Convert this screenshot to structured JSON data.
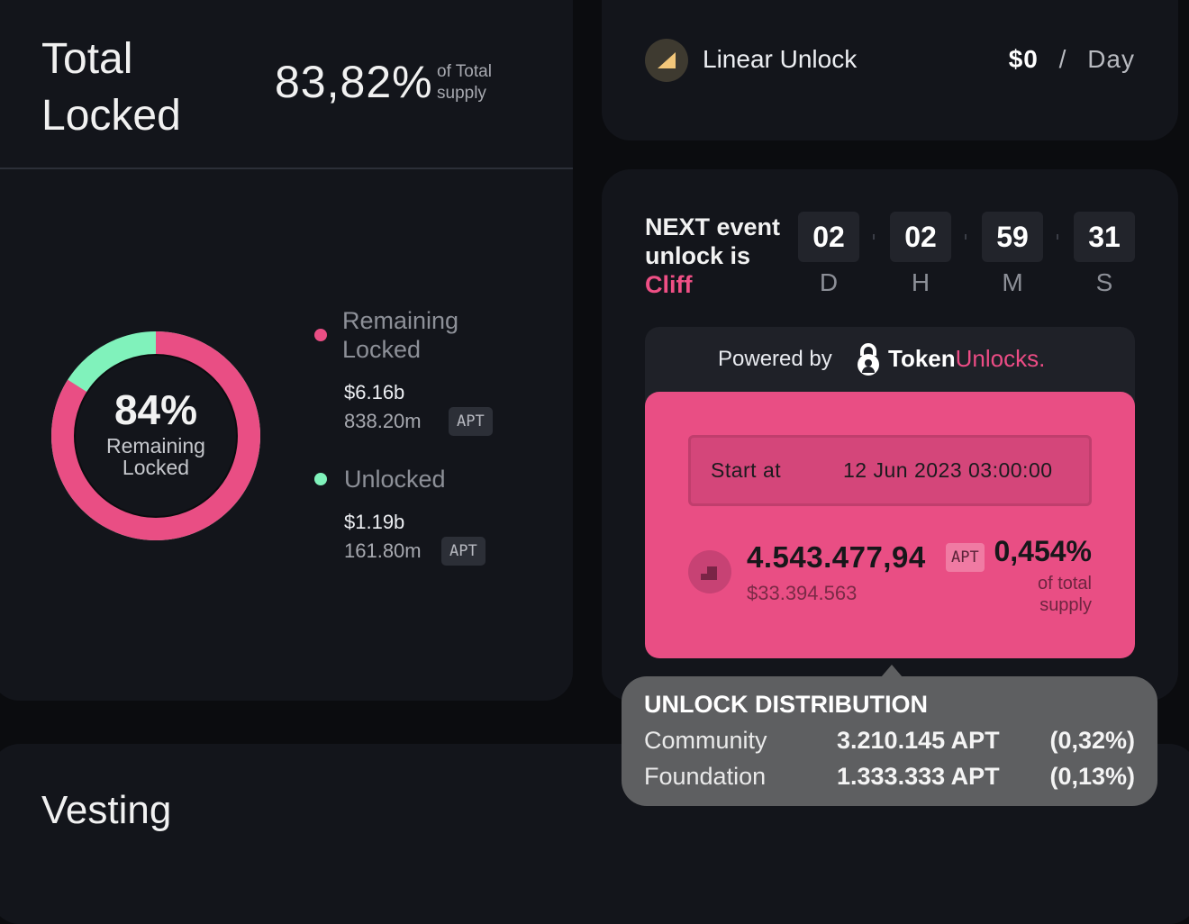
{
  "locked": {
    "title": "Total Locked",
    "percent": "83,82%",
    "of_total": "of Total supply",
    "donut": {
      "percent": "84%",
      "label": "Remaining Locked",
      "locked_fraction": 0.84,
      "locked_color": "#e94e84",
      "unlocked_color": "#80f2bb"
    },
    "legend": [
      {
        "label": "Remaining Locked",
        "usd": "$6.16b",
        "amount": "838.20m",
        "unit": "APT",
        "color": "#e94e84"
      },
      {
        "label": "Unlocked",
        "usd": "$1.19b",
        "amount": "161.80m",
        "unit": "APT",
        "color": "#80f2bb"
      }
    ]
  },
  "linear": {
    "label": "Linear Unlock",
    "value": "$0",
    "separator": "/",
    "period": "Day"
  },
  "next_event": {
    "prefix": "NEXT event unlock is",
    "type": "Cliff",
    "countdown": [
      {
        "value": "02",
        "unit": "D"
      },
      {
        "value": "02",
        "unit": "H"
      },
      {
        "value": "59",
        "unit": "M"
      },
      {
        "value": "31",
        "unit": "S"
      }
    ],
    "powered_by": "Powered by",
    "brand_a": "Token",
    "brand_b": "Unlocks.",
    "start_label": "Start at",
    "start_value": "12 Jun 2023 03:00:00",
    "amount": "4.543.477,94",
    "amount_unit": "APT",
    "amount_usd": "$33.394.563",
    "supply_percent": "0,454%",
    "supply_label": "of total supply"
  },
  "tooltip": {
    "title": "UNLOCK DISTRIBUTION",
    "rows": [
      {
        "name": "Community",
        "amount": "3.210.145 APT",
        "percent": "(0,32%)"
      },
      {
        "name": "Foundation",
        "amount": "1.333.333 APT",
        "percent": "(0,13%)"
      }
    ]
  },
  "vesting": {
    "title": "Vesting"
  },
  "colors": {
    "accent_pink": "#e94e84",
    "accent_green": "#80f2bb",
    "card_bg": "#13151b"
  }
}
